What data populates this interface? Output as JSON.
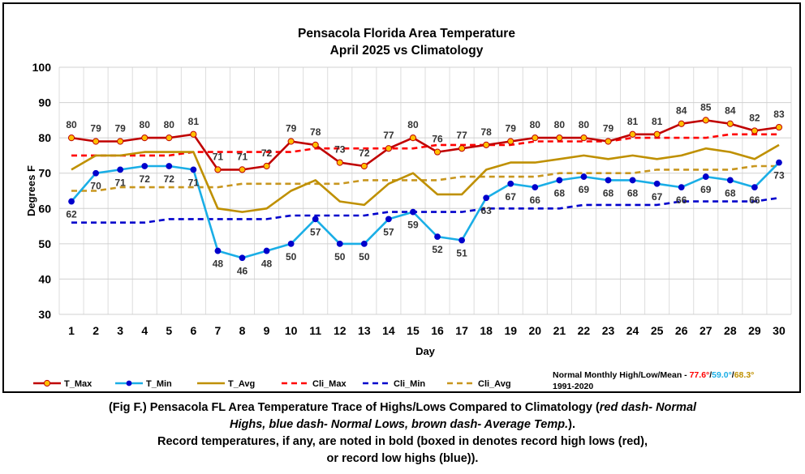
{
  "chart_data": {
    "type": "line",
    "title": "Pensacola Florida Area Temperature",
    "subtitle": "April 2025 vs Climatology",
    "xlabel": "Day",
    "ylabel": "Degrees F",
    "ylim": [
      30,
      100
    ],
    "yticks": [
      30,
      40,
      50,
      60,
      70,
      80,
      90,
      100
    ],
    "x": [
      1,
      2,
      3,
      4,
      5,
      6,
      7,
      8,
      9,
      10,
      11,
      12,
      13,
      14,
      15,
      16,
      17,
      18,
      19,
      20,
      21,
      22,
      23,
      24,
      25,
      26,
      27,
      28,
      29,
      30
    ],
    "grid": true,
    "legend_position": "bottom",
    "series": [
      {
        "name": "T_Max",
        "color": "#c00000",
        "style": "solid",
        "marker": "circle-yellow",
        "labels": "above",
        "values": [
          80,
          79,
          79,
          80,
          80,
          81,
          71,
          71,
          72,
          79,
          78,
          73,
          72,
          77,
          80,
          76,
          77,
          78,
          79,
          80,
          80,
          80,
          79,
          81,
          81,
          84,
          85,
          84,
          82,
          83
        ]
      },
      {
        "name": "T_Min",
        "color": "#1aaee6",
        "style": "solid",
        "marker": "circle-blue",
        "labels": "below",
        "values": [
          62,
          70,
          71,
          72,
          72,
          71,
          48,
          46,
          48,
          50,
          57,
          50,
          50,
          57,
          59,
          52,
          51,
          63,
          67,
          66,
          68,
          69,
          68,
          68,
          67,
          66,
          69,
          68,
          66,
          73
        ]
      },
      {
        "name": "T_Avg",
        "color": "#bf9000",
        "style": "solid",
        "marker": "none",
        "values": [
          71,
          75,
          75,
          76,
          76,
          76,
          60,
          59,
          60,
          65,
          68,
          62,
          61,
          67,
          70,
          64,
          64,
          71,
          73,
          73,
          74,
          75,
          74,
          75,
          74,
          75,
          77,
          76,
          74,
          78
        ]
      },
      {
        "name": "Cli_Max",
        "color": "#ff0000",
        "style": "dash",
        "marker": "none",
        "values": [
          75,
          75,
          75,
          75,
          75,
          76,
          76,
          76,
          76,
          76,
          77,
          77,
          77,
          77,
          77,
          78,
          78,
          78,
          78,
          79,
          79,
          79,
          79,
          80,
          80,
          80,
          80,
          81,
          81,
          81
        ]
      },
      {
        "name": "Cli_Min",
        "color": "#0000cc",
        "style": "dash",
        "marker": "none",
        "values": [
          56,
          56,
          56,
          56,
          57,
          57,
          57,
          57,
          57,
          58,
          58,
          58,
          58,
          59,
          59,
          59,
          59,
          60,
          60,
          60,
          60,
          61,
          61,
          61,
          61,
          62,
          62,
          62,
          62,
          63
        ]
      },
      {
        "name": "Cli_Avg",
        "color": "#c8961e",
        "style": "dash",
        "marker": "none",
        "values": [
          65,
          65,
          66,
          66,
          66,
          66,
          66,
          67,
          67,
          67,
          67,
          67,
          68,
          68,
          68,
          68,
          69,
          69,
          69,
          69,
          70,
          70,
          70,
          70,
          71,
          71,
          71,
          71,
          72,
          72
        ]
      }
    ],
    "normals": {
      "label": "Normal Monthly High/Low/Mean -",
      "high": "77.6°",
      "low": "59.0°",
      "mean": "68.3°",
      "period": "1991-2020",
      "high_color": "#ff0000",
      "low_color": "#1aaee6",
      "mean_color": "#bf9000"
    }
  },
  "caption": {
    "line1_plain": "(Fig F.) Pensacola FL Area Temperature Trace of Highs/Lows Compared to Climatology (",
    "line1_italic": "red dash- Normal",
    "line2_italic": "Highs, blue dash- Normal Lows, brown dash- Average Temp.",
    "line2_plain": ").",
    "line3": "Record temperatures, if any, are noted in bold (boxed in denotes record high lows (red),",
    "line4": "or record low highs (blue))."
  }
}
